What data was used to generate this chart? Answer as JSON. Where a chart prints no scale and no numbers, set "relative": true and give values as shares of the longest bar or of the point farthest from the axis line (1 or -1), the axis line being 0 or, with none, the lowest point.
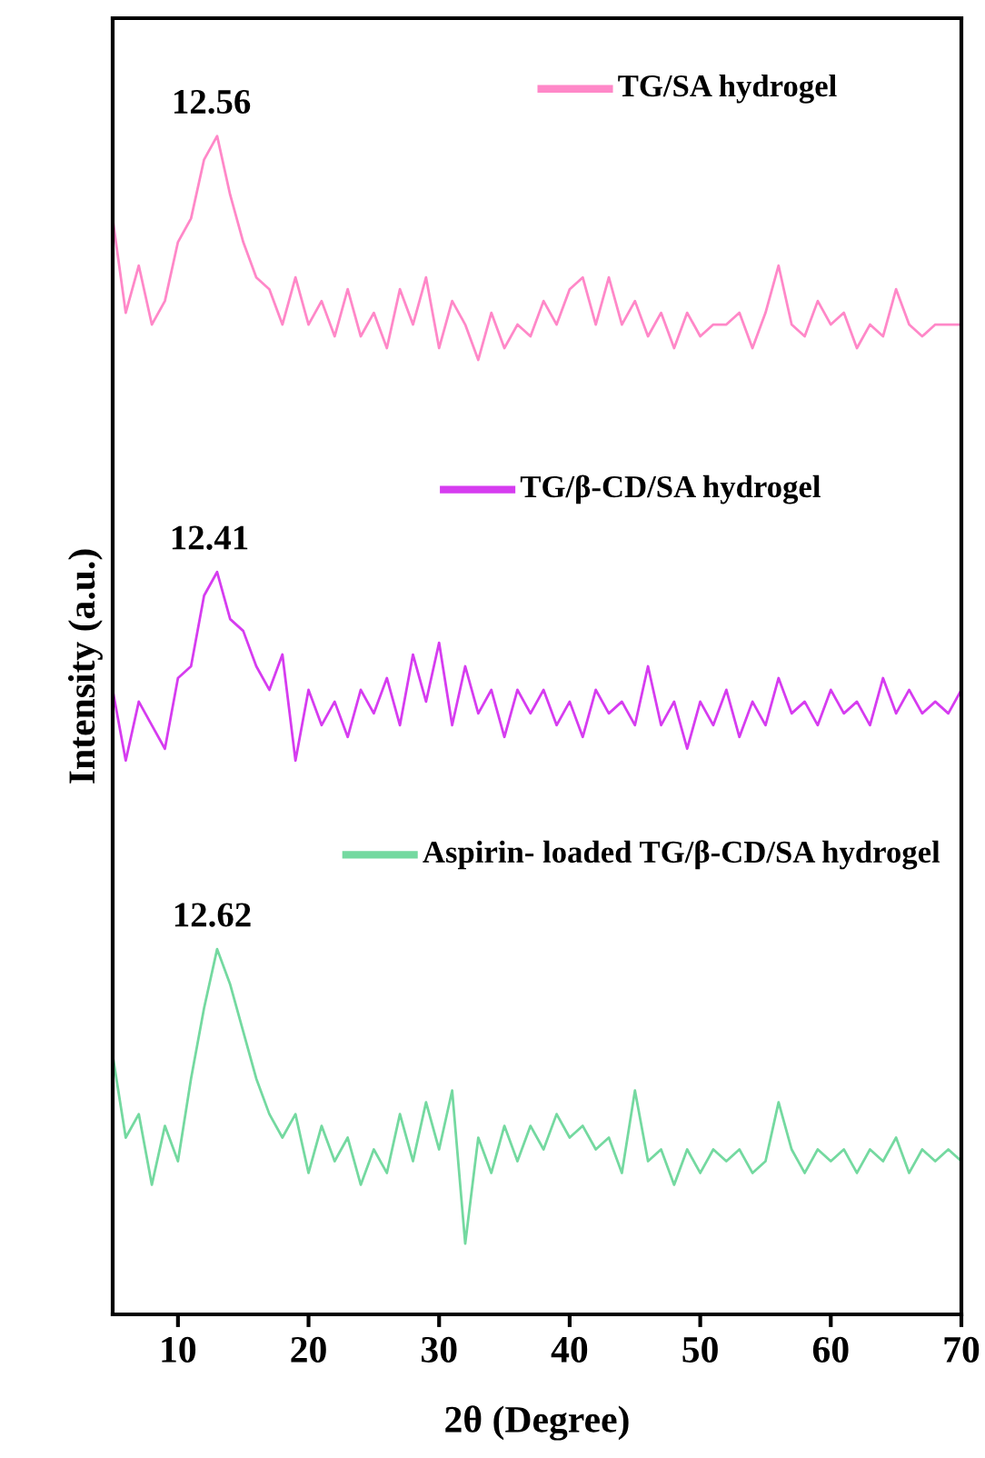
{
  "chart_data": {
    "type": "line",
    "relative": true,
    "xlabel": "2θ (Degree)",
    "ylabel": "Intensity (a.u.)",
    "xlim": [
      5,
      70
    ],
    "xticks": [
      10,
      20,
      30,
      40,
      50,
      60,
      70
    ],
    "tick_labels": "x",
    "grid": false,
    "legend": "top right",
    "marker": "none",
    "line_style": "solid",
    "x": [
      5,
      6,
      7,
      8,
      9,
      10,
      11,
      12,
      13,
      14,
      15,
      16,
      17,
      18,
      19,
      20,
      21,
      22,
      23,
      24,
      25,
      26,
      27,
      28,
      29,
      30,
      31,
      32,
      33,
      34,
      35,
      36,
      37,
      38,
      39,
      40,
      41,
      42,
      43,
      44,
      45,
      46,
      47,
      48,
      49,
      50,
      51,
      52,
      53,
      54,
      55,
      56,
      57,
      58,
      59,
      60,
      61,
      62,
      63,
      64,
      65,
      66,
      67,
      68,
      69,
      70
    ],
    "series": [
      {
        "name": "TG/SA hydrogel",
        "color": "#ff88c8",
        "values": [
          0.93,
          0.85,
          0.89,
          0.84,
          0.86,
          0.91,
          0.93,
          0.98,
          1.0,
          0.95,
          0.91,
          0.88,
          0.87,
          0.84,
          0.88,
          0.84,
          0.86,
          0.83,
          0.87,
          0.83,
          0.85,
          0.82,
          0.87,
          0.84,
          0.88,
          0.82,
          0.86,
          0.84,
          0.81,
          0.85,
          0.82,
          0.84,
          0.83,
          0.86,
          0.84,
          0.87,
          0.88,
          0.84,
          0.88,
          0.84,
          0.86,
          0.83,
          0.85,
          0.82,
          0.85,
          0.83,
          0.84,
          0.84,
          0.85,
          0.82,
          0.85,
          0.89,
          0.84,
          0.83,
          0.86,
          0.84,
          0.85,
          0.82,
          0.84,
          0.83,
          0.87,
          0.84,
          0.83,
          0.84,
          0.84,
          0.84
        ]
      },
      {
        "name": "TG/β-CD/SA hydrogel",
        "color": "#d63cf0",
        "values": [
          0.53,
          0.47,
          0.52,
          0.5,
          0.48,
          0.54,
          0.55,
          0.61,
          0.63,
          0.59,
          0.58,
          0.55,
          0.53,
          0.56,
          0.47,
          0.53,
          0.5,
          0.52,
          0.49,
          0.53,
          0.51,
          0.54,
          0.5,
          0.56,
          0.52,
          0.57,
          0.5,
          0.55,
          0.51,
          0.53,
          0.49,
          0.53,
          0.51,
          0.53,
          0.5,
          0.52,
          0.49,
          0.53,
          0.51,
          0.52,
          0.5,
          0.55,
          0.5,
          0.52,
          0.48,
          0.52,
          0.5,
          0.53,
          0.49,
          0.52,
          0.5,
          0.54,
          0.51,
          0.52,
          0.5,
          0.53,
          0.51,
          0.52,
          0.5,
          0.54,
          0.51,
          0.53,
          0.51,
          0.52,
          0.51,
          0.53
        ]
      },
      {
        "name": "Aspirin- loaded TG/β-CD/SA hydrogel",
        "color": "#74d9a0",
        "values": [
          0.22,
          0.15,
          0.17,
          0.11,
          0.16,
          0.13,
          0.2,
          0.26,
          0.31,
          0.28,
          0.24,
          0.2,
          0.17,
          0.15,
          0.17,
          0.12,
          0.16,
          0.13,
          0.15,
          0.11,
          0.14,
          0.12,
          0.17,
          0.13,
          0.18,
          0.14,
          0.19,
          0.06,
          0.15,
          0.12,
          0.16,
          0.13,
          0.16,
          0.14,
          0.17,
          0.15,
          0.16,
          0.14,
          0.15,
          0.12,
          0.19,
          0.13,
          0.14,
          0.11,
          0.14,
          0.12,
          0.14,
          0.13,
          0.14,
          0.12,
          0.13,
          0.18,
          0.14,
          0.12,
          0.14,
          0.13,
          0.14,
          0.12,
          0.14,
          0.13,
          0.15,
          0.12,
          0.14,
          0.13,
          0.14,
          0.13
        ]
      }
    ],
    "annotations": [
      {
        "text": "12.56",
        "x": 12.56,
        "y": 1.0
      },
      {
        "text": "12.41",
        "x": 12.41,
        "y": 0.63
      },
      {
        "text": "12.62",
        "x": 12.62,
        "y": 0.31
      }
    ]
  }
}
